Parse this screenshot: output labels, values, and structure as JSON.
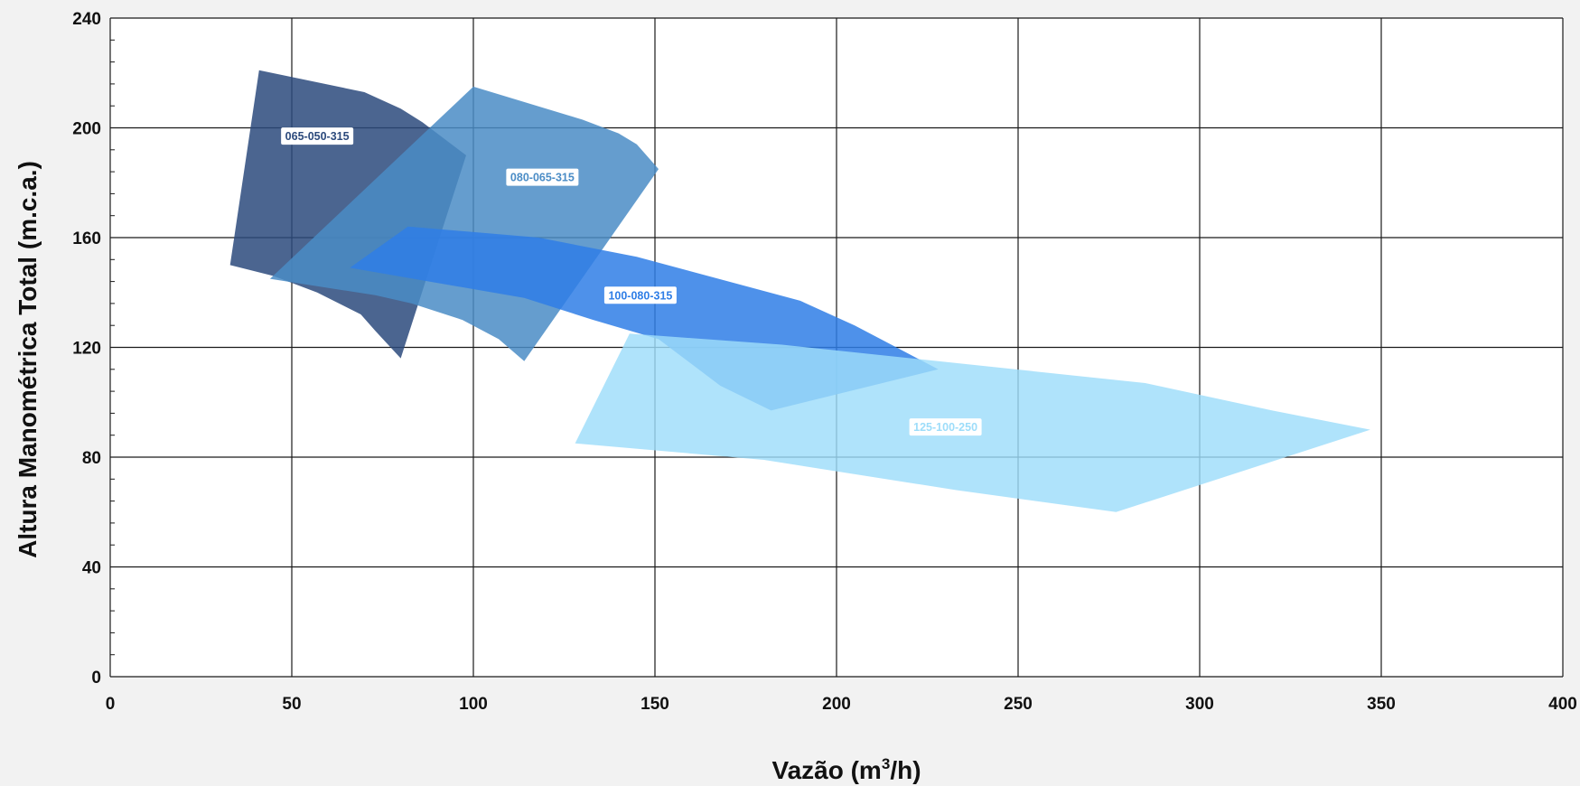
{
  "chart_data": {
    "type": "area",
    "title": "",
    "xlabel": "Vazão (m³/h)",
    "xlabel_main": "Vazão (m",
    "xlabel_sup": "3",
    "xlabel_tail": "/h)",
    "ylabel": "Altura Manométrica Total (m.c.a.)",
    "xlim": [
      0,
      400
    ],
    "ylim": [
      0,
      240
    ],
    "x_ticks": [
      0,
      50,
      100,
      150,
      200,
      250,
      300,
      350,
      400
    ],
    "y_ticks": [
      0,
      40,
      80,
      120,
      160,
      200,
      240
    ],
    "grid": true,
    "series": [
      {
        "name": "065-050-315",
        "color": "#2c4a7c",
        "label_color": "#2c4a7c",
        "label_at": [
          57,
          197
        ],
        "outline": [
          [
            41,
            221
          ],
          [
            70,
            213
          ],
          [
            80,
            207
          ],
          [
            86,
            202
          ],
          [
            98,
            190
          ],
          [
            80,
            116
          ],
          [
            73,
            126
          ],
          [
            69,
            132
          ],
          [
            57,
            140
          ],
          [
            45,
            146
          ],
          [
            33,
            150
          ]
        ]
      },
      {
        "name": "080-065-315",
        "color": "#4a8cc6",
        "label_color": "#4a8cc6",
        "label_at": [
          119,
          182
        ],
        "outline": [
          [
            100,
            215
          ],
          [
            130,
            203
          ],
          [
            140,
            198
          ],
          [
            145,
            194
          ],
          [
            151,
            185
          ],
          [
            114,
            115
          ],
          [
            107,
            123
          ],
          [
            97,
            130
          ],
          [
            83,
            136
          ],
          [
            73,
            139
          ],
          [
            44,
            145
          ]
        ]
      },
      {
        "name": "100-080-315",
        "color": "#2f7ee6",
        "label_color": "#2f7ee6",
        "label_at": [
          146,
          139
        ],
        "outline": [
          [
            82,
            164
          ],
          [
            118,
            160
          ],
          [
            145,
            153
          ],
          [
            190,
            137
          ],
          [
            205,
            128
          ],
          [
            228,
            112
          ],
          [
            182,
            97
          ],
          [
            168,
            106
          ],
          [
            151,
            123
          ],
          [
            133,
            130
          ],
          [
            114,
            138
          ],
          [
            66,
            149
          ]
        ]
      },
      {
        "name": "125-100-250",
        "color": "#9dddfa",
        "label_color": "#9dddfa",
        "label_at": [
          230,
          91
        ],
        "outline": [
          [
            143,
            125
          ],
          [
            185,
            121
          ],
          [
            285,
            107
          ],
          [
            320,
            97
          ],
          [
            347,
            90
          ],
          [
            277,
            60
          ],
          [
            233,
            68
          ],
          [
            180,
            79
          ],
          [
            128,
            85
          ]
        ]
      }
    ]
  }
}
